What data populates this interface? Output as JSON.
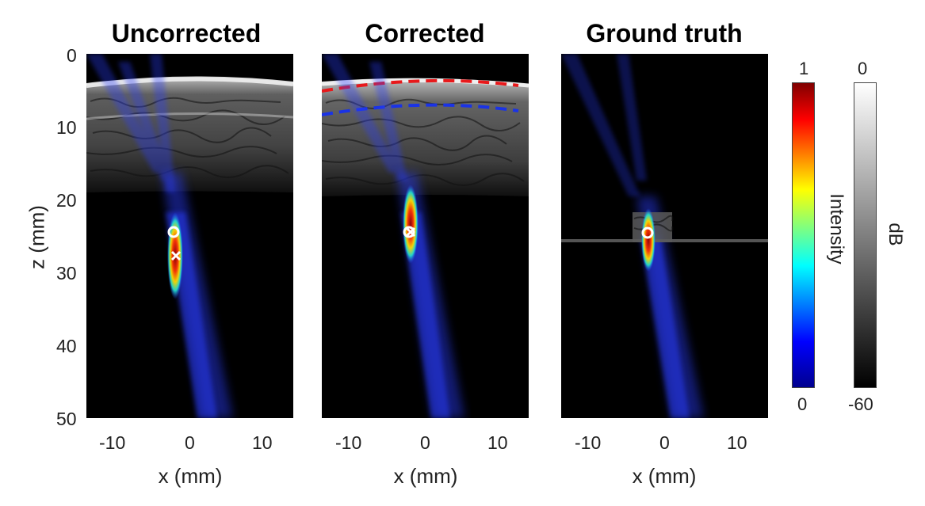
{
  "panels": [
    {
      "title": "Uncorrected"
    },
    {
      "title": "Corrected"
    },
    {
      "title": "Ground truth"
    }
  ],
  "axes": {
    "x_label": "x (mm)",
    "y_label": "z (mm)",
    "x_ticks": [
      "-10",
      "0",
      "10"
    ],
    "y_ticks": [
      "0",
      "10",
      "20",
      "30",
      "40",
      "50"
    ],
    "x_range": [
      -14,
      14
    ],
    "y_range": [
      0,
      50
    ]
  },
  "colorbars": {
    "intensity": {
      "label": "Intensity",
      "max": "1",
      "min": "0",
      "colormap": "jet"
    },
    "db": {
      "label": "dB",
      "max": "0",
      "min": "-60",
      "colormap": "gray"
    }
  },
  "markers": {
    "uncorrected": {
      "circle": {
        "x": -2,
        "z": 24.5
      },
      "cross": {
        "x": -2,
        "z": 27.7
      }
    },
    "corrected": {
      "circle": {
        "x": -2,
        "z": 24.5
      },
      "cross": {
        "x": -2,
        "z": 24.5
      }
    },
    "ground_truth": {
      "circle": {
        "x": -2,
        "z": 24.8
      }
    }
  },
  "colors": {
    "red_dashed": "#e8191b",
    "blue_dashed": "#1a33e6",
    "marker": "#ffffff"
  }
}
